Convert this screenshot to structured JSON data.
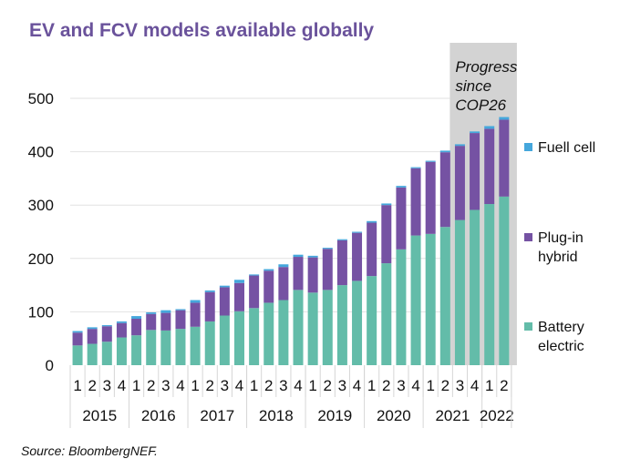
{
  "chart_data": {
    "type": "bar",
    "stacked": true,
    "title": "EV and FCV models available globally",
    "source": "Source: BloombergNEF.",
    "xlabel": "",
    "ylabel": "",
    "ylim": [
      0,
      500
    ],
    "yticks": [
      0,
      100,
      200,
      300,
      400,
      500
    ],
    "grid": true,
    "legend_position": "right",
    "quarters": [
      "1",
      "2",
      "3",
      "4",
      "1",
      "2",
      "3",
      "4",
      "1",
      "2",
      "3",
      "4",
      "1",
      "2",
      "3",
      "4",
      "1",
      "2",
      "3",
      "4",
      "1",
      "2",
      "3",
      "4",
      "1",
      "2",
      "3",
      "4",
      "1",
      "2"
    ],
    "years": [
      {
        "label": "2015",
        "count": 4
      },
      {
        "label": "2016",
        "count": 4
      },
      {
        "label": "2017",
        "count": 4
      },
      {
        "label": "2018",
        "count": 4
      },
      {
        "label": "2019",
        "count": 4
      },
      {
        "label": "2020",
        "count": 4
      },
      {
        "label": "2021",
        "count": 4
      },
      {
        "label": "2022",
        "count": 2
      }
    ],
    "series": [
      {
        "name": "Battery electric",
        "color": "#63bca9",
        "values": [
          37,
          40,
          44,
          52,
          56,
          66,
          65,
          68,
          72,
          82,
          93,
          101,
          107,
          117,
          122,
          141,
          136,
          141,
          150,
          158,
          167,
          191,
          217,
          243,
          246,
          259,
          272,
          291,
          302,
          316
        ]
      },
      {
        "name": "Plug-in hybrid",
        "color": "#7552a3",
        "values": [
          24,
          28,
          29,
          27,
          31,
          30,
          33,
          35,
          45,
          55,
          53,
          53,
          61,
          60,
          62,
          62,
          66,
          77,
          84,
          90,
          100,
          109,
          116,
          126,
          135,
          140,
          139,
          144,
          141,
          144
        ]
      },
      {
        "name": "Fuell cell",
        "color": "#45a7dc",
        "values": [
          3,
          3,
          2,
          3,
          5,
          3,
          5,
          2,
          5,
          3,
          3,
          6,
          2,
          3,
          5,
          4,
          3,
          2,
          2,
          2,
          3,
          3,
          3,
          2,
          2,
          3,
          3,
          3,
          5,
          5
        ]
      }
    ],
    "legend": [
      {
        "label_lines": [
          "Fuell cell"
        ],
        "color": "#45a7dc"
      },
      {
        "label_lines": [
          "Plug-in",
          "hybrid"
        ],
        "color": "#7552a3"
      },
      {
        "label_lines": [
          "Battery",
          "electric"
        ],
        "color": "#63bca9"
      }
    ],
    "annotation": {
      "lines": [
        "Progress",
        "since",
        "COP26"
      ],
      "shade_from_index": 26,
      "shade_to_index": 29,
      "shade_color": "#d3d3d3"
    }
  }
}
